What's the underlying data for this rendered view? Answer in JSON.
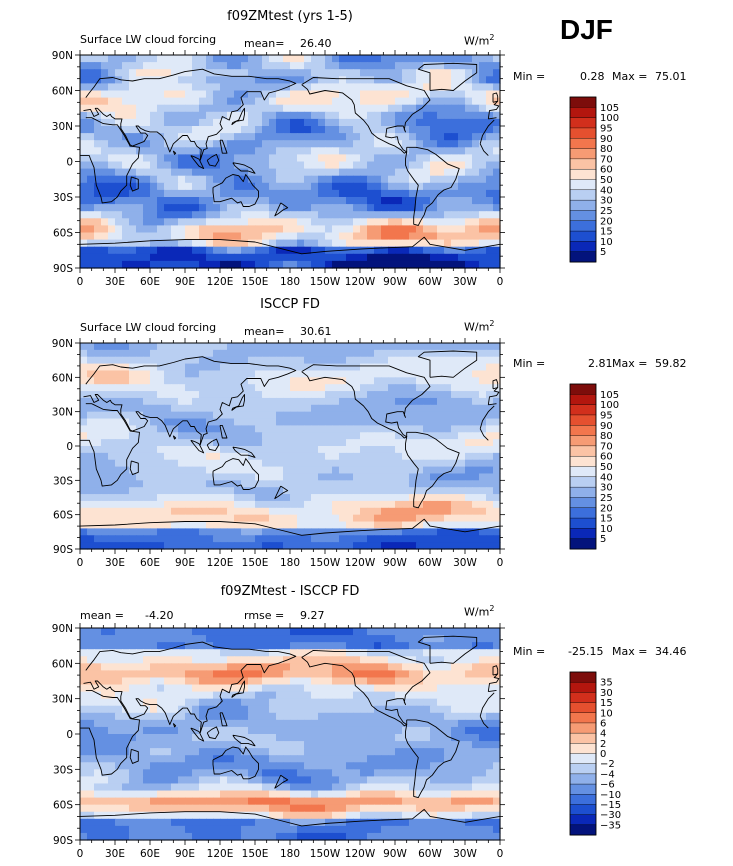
{
  "season": "DJF",
  "panels": [
    {
      "title": "f09ZMtest (yrs 1-5)",
      "left_label": "Surface LW cloud forcing",
      "mean_label": "mean=",
      "mean_value": "26.40",
      "rmse_label": "",
      "rmse_value": "",
      "units": "W/m",
      "units_sup": "2",
      "min_label": "Min =",
      "min_value": "0.28",
      "max_label": "Max =",
      "max_value": "75.01"
    },
    {
      "title": "ISCCP FD",
      "left_label": "Surface LW cloud forcing",
      "mean_label": "mean=",
      "mean_value": "30.61",
      "rmse_label": "",
      "rmse_value": "",
      "units": "W/m",
      "units_sup": "2",
      "min_label": "Min =",
      "min_value": "2.81",
      "max_label": "Max =",
      "max_value": "59.82"
    },
    {
      "title": "f09ZMtest - ISCCP FD",
      "left_label": "",
      "mean_label": "mean =",
      "mean_value": "-4.20",
      "rmse_label": "rmse =",
      "rmse_value": "9.27",
      "units": "W/m",
      "units_sup": "2",
      "min_label": "Min =",
      "min_value": "-25.15",
      "max_label": "Max =",
      "max_value": "34.46"
    }
  ],
  "chart_data": [
    {
      "type": "heatmap",
      "title": "f09ZMtest (yrs 1-5)",
      "xlabel": "",
      "ylabel": "",
      "x_ticks": [
        "0",
        "30E",
        "60E",
        "90E",
        "120E",
        "150E",
        "180",
        "150W",
        "120W",
        "90W",
        "60W",
        "30W",
        "0"
      ],
      "y_ticks": [
        "90N",
        "60N",
        "30N",
        "0",
        "30S",
        "60S",
        "90S"
      ],
      "xlim": [
        0,
        360
      ],
      "ylim": [
        -90,
        90
      ],
      "field_kind": "cloud_forcing_model",
      "colorbar_levels": [
        "105",
        "100",
        "95",
        "90",
        "80",
        "70",
        "60",
        "50",
        "40",
        "30",
        "25",
        "20",
        "15",
        "10",
        "5"
      ],
      "colorbar_colors": [
        "#7d0d0b",
        "#b3160e",
        "#d22f1c",
        "#e5502f",
        "#f2764d",
        "#f69b74",
        "#fbc3a5",
        "#fde3d2",
        "#dfe9f8",
        "#b9cff2",
        "#8fb0ea",
        "#6490e2",
        "#3c6fdc",
        "#1d4fd0",
        "#0a28b8",
        "#03137c"
      ],
      "min": 0.28,
      "max": 75.01,
      "mean": 26.4
    },
    {
      "type": "heatmap",
      "title": "ISCCP FD",
      "xlabel": "",
      "ylabel": "",
      "x_ticks": [
        "0",
        "30E",
        "60E",
        "90E",
        "120E",
        "150E",
        "180",
        "150W",
        "120W",
        "90W",
        "60W",
        "30W",
        "0"
      ],
      "y_ticks": [
        "90N",
        "60N",
        "30N",
        "0",
        "30S",
        "60S",
        "90S"
      ],
      "xlim": [
        0,
        360
      ],
      "ylim": [
        -90,
        90
      ],
      "field_kind": "cloud_forcing_obs",
      "colorbar_levels": [
        "105",
        "100",
        "95",
        "90",
        "80",
        "70",
        "60",
        "50",
        "40",
        "30",
        "25",
        "20",
        "15",
        "10",
        "5"
      ],
      "colorbar_colors": [
        "#7d0d0b",
        "#b3160e",
        "#d22f1c",
        "#e5502f",
        "#f2764d",
        "#f69b74",
        "#fbc3a5",
        "#fde3d2",
        "#dfe9f8",
        "#b9cff2",
        "#8fb0ea",
        "#6490e2",
        "#3c6fdc",
        "#1d4fd0",
        "#0a28b8",
        "#03137c"
      ],
      "min": 2.81,
      "max": 59.82,
      "mean": 30.61
    },
    {
      "type": "heatmap",
      "title": "f09ZMtest - ISCCP FD",
      "xlabel": "",
      "ylabel": "",
      "x_ticks": [
        "0",
        "30E",
        "60E",
        "90E",
        "120E",
        "150E",
        "180",
        "150W",
        "120W",
        "90W",
        "60W",
        "30W",
        "0"
      ],
      "y_ticks": [
        "90N",
        "60N",
        "30N",
        "0",
        "30S",
        "60S",
        "90S"
      ],
      "xlim": [
        0,
        360
      ],
      "ylim": [
        -90,
        90
      ],
      "field_kind": "difference",
      "colorbar_levels": [
        "35",
        "30",
        "15",
        "10",
        "6",
        "4",
        "2",
        "0",
        "−2",
        "−4",
        "−6",
        "−10",
        "−15",
        "−30",
        "−35"
      ],
      "colorbar_colors": [
        "#7d0d0b",
        "#b3160e",
        "#d22f1c",
        "#e5502f",
        "#f2764d",
        "#f69b74",
        "#fbc3a5",
        "#fde3d2",
        "#dfe9f8",
        "#b9cff2",
        "#8fb0ea",
        "#6490e2",
        "#3c6fdc",
        "#1d4fd0",
        "#0a28b8",
        "#03137c"
      ],
      "min": -25.15,
      "max": 34.46,
      "mean": -4.2,
      "rmse": 9.27
    }
  ]
}
